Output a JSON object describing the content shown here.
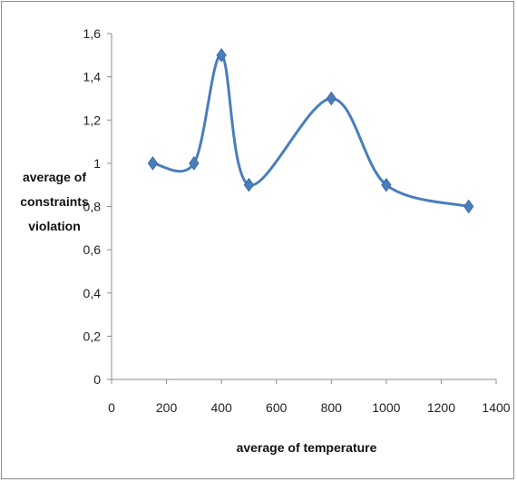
{
  "chart_data": {
    "type": "line",
    "title": "",
    "xlabel": "average of temperature",
    "ylabel_lines": [
      "average of",
      "constraints",
      "violation"
    ],
    "xlim": [
      0,
      1400
    ],
    "ylim": [
      0,
      1.6
    ],
    "x_ticks": [
      "0",
      "200",
      "400",
      "600",
      "800",
      "1000",
      "1200",
      "1400"
    ],
    "y_ticks": [
      "0",
      "0,2",
      "0,4",
      "0,6",
      "0,8",
      "1",
      "1,2",
      "1,4",
      "1,6"
    ],
    "grid": false,
    "legend": "none",
    "smooth": true,
    "marker": "diamond",
    "color": "#4a7ebb",
    "series": [
      {
        "x": [
          150,
          300,
          400,
          500,
          800,
          1000,
          1300
        ],
        "values": [
          1.0,
          1.0,
          1.5,
          0.9,
          1.3,
          0.9,
          0.8
        ]
      }
    ]
  }
}
